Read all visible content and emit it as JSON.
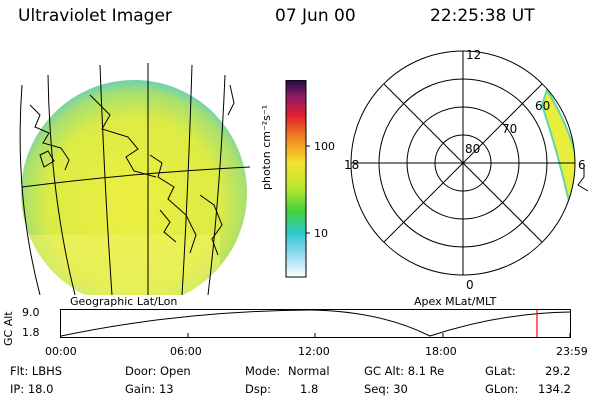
{
  "header": {
    "instrument": "Ultraviolet Imager",
    "date": "07 Jun 00",
    "time": "22:25:38 UT"
  },
  "colorbar": {
    "unit_label": "photon cm⁻²s⁻¹",
    "ticks": [
      "100",
      "10"
    ]
  },
  "map_labels": {
    "left": "Geographic Lat/Lon",
    "right": "Apex MLat/MLT"
  },
  "polar": {
    "mlt_labels": [
      "12",
      "18",
      "0",
      "6"
    ],
    "lat_labels": [
      "80",
      "70",
      "60"
    ]
  },
  "orbit": {
    "axis_title": "GC Alt",
    "y_max": "9.0",
    "y_min": "1.8",
    "time_ticks": [
      "00:00",
      "06:00",
      "12:00",
      "18:00",
      "23:59"
    ]
  },
  "info": {
    "row1": {
      "flt": "Flt: LBHS",
      "door": "Door: Open",
      "mode_label": "Mode:",
      "mode_value": "Normal",
      "gcalt": "GC Alt: 8.1 Re",
      "glat_label": "GLat:",
      "glat_value": "29.2"
    },
    "row2": {
      "ip": "IP: 18.0",
      "gain": "Gain: 13",
      "dsp_label": "Dsp:",
      "dsp_value": "1.8",
      "seq": "Seq: 30",
      "glon_label": "GLon:",
      "glon_value": "134.2"
    }
  },
  "colors": {
    "image_fill": "#e8ee3c",
    "image_edge": "#66d2a8",
    "highlight": "#ff0000"
  }
}
